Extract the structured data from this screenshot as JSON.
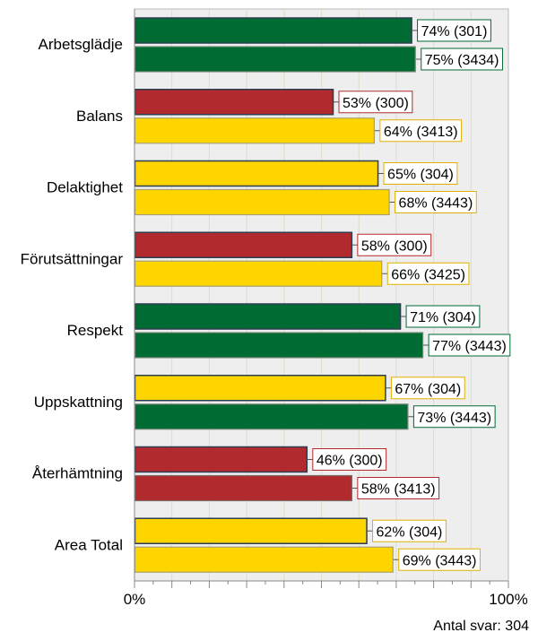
{
  "chart_data": {
    "type": "bar",
    "orientation": "horizontal",
    "categories": [
      "Arbetsglädje",
      "Balans",
      "Delaktighet",
      "Förutsättningar",
      "Respekt",
      "Uppskattning",
      "Återhämtning",
      "Area Total"
    ],
    "series": [
      {
        "values": [
          74,
          53,
          65,
          58,
          71,
          67,
          46,
          62
        ],
        "labels": [
          "74% (301)",
          "53% (300)",
          "65% (304)",
          "58% (300)",
          "71% (304)",
          "67% (304)",
          "46% (300)",
          "62% (304)"
        ],
        "status": [
          "green",
          "red",
          "yellow",
          "red",
          "green",
          "yellow",
          "red",
          "yellow"
        ]
      },
      {
        "values": [
          75,
          64,
          68,
          66,
          77,
          73,
          58,
          69
        ],
        "labels": [
          "75% (3434)",
          "64% (3413)",
          "68% (3443)",
          "66% (3425)",
          "77% (3443)",
          "73% (3443)",
          "58% (3413)",
          "69% (3443)"
        ],
        "status": [
          "green",
          "yellow",
          "yellow",
          "yellow",
          "green",
          "green",
          "red",
          "yellow"
        ]
      }
    ],
    "xlim": [
      0,
      100
    ],
    "x_tick_labels": [
      "0%",
      "100%"
    ],
    "grid": true,
    "legend": "none",
    "colors": {
      "green": "#006b33",
      "red": "#b22a2e",
      "yellow": "#ffd500",
      "plot_background": "#eeeeee",
      "gridline": "#dcdcc8"
    }
  },
  "footer": {
    "note": "Antal svar: 304"
  }
}
